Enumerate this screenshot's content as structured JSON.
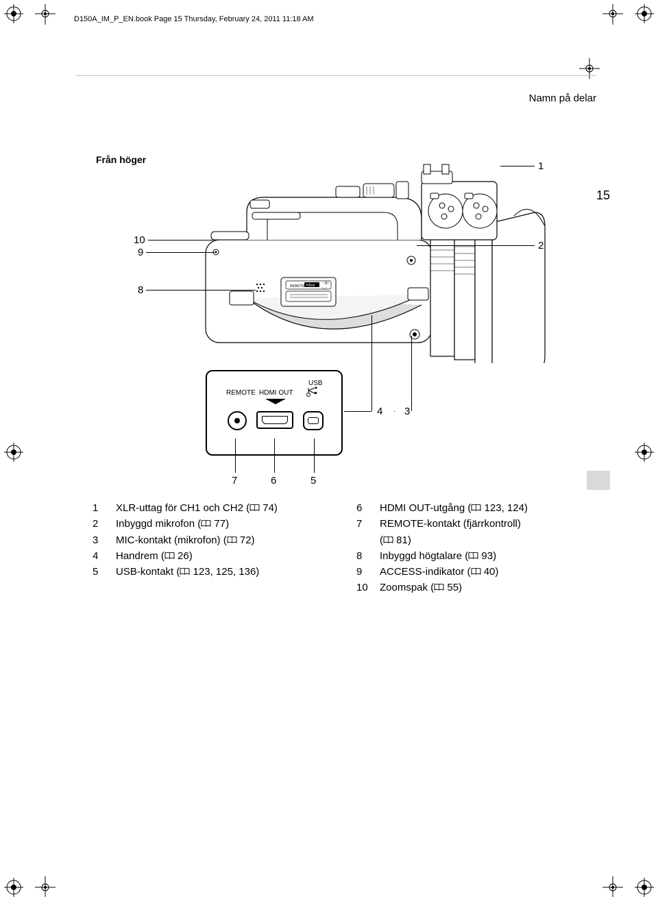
{
  "header": "D150A_IM_P_EN.book  Page 15  Thursday, February 24, 2011  11:18 AM",
  "section_title": "Namn på delar",
  "subheader": "Från höger",
  "page_number": "15",
  "port_panel": {
    "remote": "REMOTE",
    "hdmi": "HDMI OUT",
    "usb": "USB"
  },
  "callouts": {
    "n1": "1",
    "n2": "2",
    "n3": "3",
    "n4": "4",
    "n5": "5",
    "n6": "6",
    "n7": "7",
    "n8": "8",
    "n9": "9",
    "n10": "10"
  },
  "left_list": [
    {
      "n": "1",
      "text_a": "XLR-uttag för CH1 och CH2 (",
      "ref": "74",
      "text_b": ")"
    },
    {
      "n": "2",
      "text_a": "Inbyggd mikrofon (",
      "ref": "77",
      "text_b": ")"
    },
    {
      "n": "3",
      "text_a": "MIC-kontakt (mikrofon) (",
      "ref": "72",
      "text_b": ")"
    },
    {
      "n": "4",
      "text_a": "Handrem (",
      "ref": "26",
      "text_b": ")"
    },
    {
      "n": "5",
      "text_a": "USB-kontakt (",
      "ref": "123, 125, 136",
      "text_b": ")"
    }
  ],
  "right_list": [
    {
      "n": "6",
      "text_a": "HDMI OUT-utgång (",
      "ref": "123, 124",
      "text_b": ")"
    },
    {
      "n": "7",
      "text_a": "REMOTE-kontakt (fjärrkontroll) (",
      "ref": "81",
      "text_b": ")"
    },
    {
      "n": "8",
      "text_a": "Inbyggd högtalare (",
      "ref": "93",
      "text_b": ")"
    },
    {
      "n": "9",
      "text_a": "ACCESS-indikator (",
      "ref": "40",
      "text_b": ")"
    },
    {
      "n": "10",
      "text_a": "Zoomspak (",
      "ref": "55",
      "text_b": ")"
    }
  ]
}
